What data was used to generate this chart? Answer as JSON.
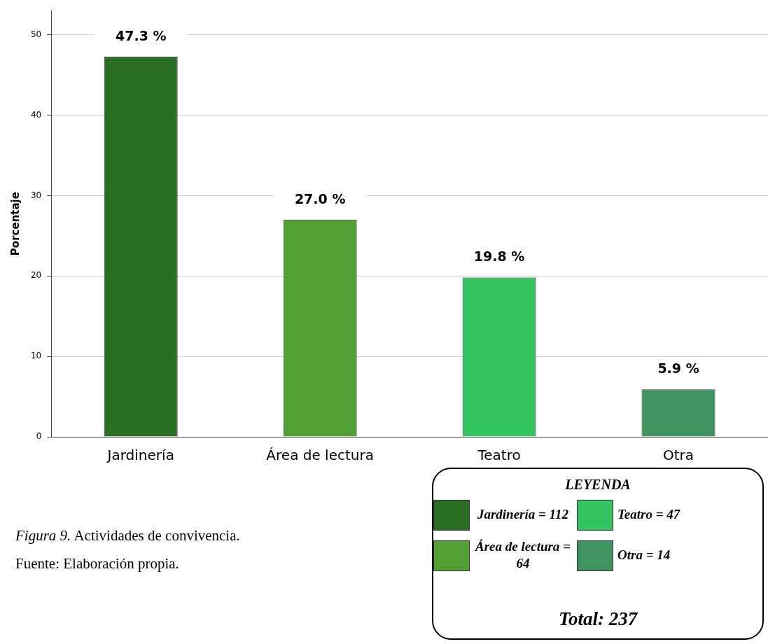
{
  "chart_data": {
    "type": "bar",
    "categories": [
      "Jardinería",
      "Área de lectura",
      "Teatro",
      "Otra"
    ],
    "series": [
      {
        "name": "Jardinería = 112",
        "color": "#2b6f24",
        "values": [
          47.3,
          null,
          null,
          null
        ],
        "value_labels": [
          "47.3 %",
          null,
          null,
          null
        ]
      },
      {
        "name": "Área de lectura = 64",
        "color": "#52a033",
        "values": [
          null,
          27.0,
          null,
          null
        ],
        "value_labels": [
          null,
          "27.0 %",
          null,
          null
        ]
      },
      {
        "name": "Teatro = 47",
        "color": "#34c462",
        "values": [
          null,
          null,
          19.8,
          null
        ],
        "value_labels": [
          null,
          null,
          "19.8 %",
          null
        ]
      },
      {
        "name": "Otra = 14",
        "color": "#3f9360",
        "values": [
          null,
          null,
          null,
          5.9
        ],
        "value_labels": [
          null,
          null,
          null,
          "5.9 %"
        ]
      }
    ],
    "ylabel": "Porcentaje",
    "ylim": [
      0,
      53
    ],
    "yticks": [
      0,
      10,
      20,
      30,
      40,
      50
    ],
    "grid": "y",
    "legend": "bottom right",
    "legend_title": "LEYENDA",
    "annotations": [
      "Figura 9. Actividades de convivencia.",
      "Fuente: Elaboración propia.",
      "Total: 237"
    ]
  }
}
